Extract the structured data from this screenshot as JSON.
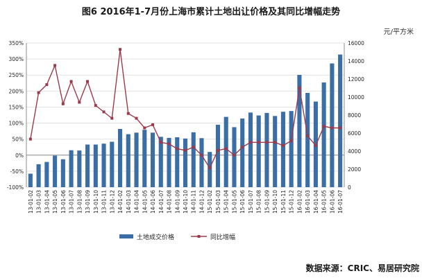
{
  "title": "图6  2016年1-7月份上海市累计土地出让价格及其同比增幅走势",
  "unit_right": "元/平方米",
  "source": "数据来源：CRIC、易居研究院",
  "colors": {
    "bar": "#3b6ea5",
    "line": "#9b3a4c",
    "grid": "#e3e3e3",
    "axis": "#8c8c8c"
  },
  "chart_data": {
    "type": "bar",
    "categories": [
      "13-01-02",
      "13-01-03",
      "13-01-04",
      "13-01-05",
      "13-01-06",
      "13-01-07",
      "13-01-08",
      "13-01-09",
      "13-01-10",
      "13-01-11",
      "13-01-12",
      "14-01-02",
      "14-01-03",
      "14-01-04",
      "14-01-05",
      "14-01-06",
      "14-01-07",
      "14-01-08",
      "14-01-09",
      "14-01-10",
      "14-01-11",
      "14-01-12",
      "15-01-02",
      "15-01-03",
      "15-01-04",
      "15-01-05",
      "15-01-06",
      "15-01-07",
      "15-01-08",
      "15-01-09",
      "15-01-10",
      "15-01-11",
      "15-01-12",
      "16-01-02",
      "16-01-03",
      "16-01-04",
      "16-01-05",
      "16-01-06",
      "16-01-07"
    ],
    "series": [
      {
        "name": "土地成交价格",
        "type": "bar",
        "axis": "right",
        "values": [
          1500,
          2550,
          2800,
          3500,
          3100,
          4100,
          4070,
          4730,
          4730,
          4830,
          5040,
          6460,
          5880,
          6050,
          6370,
          6050,
          5590,
          5470,
          5540,
          5400,
          6090,
          5440,
          3910,
          6930,
          7800,
          6660,
          7620,
          8280,
          7960,
          8240,
          7900,
          8370,
          8450,
          12460,
          10460,
          9500,
          11620,
          13730,
          14720
        ]
      },
      {
        "name": "同比增幅",
        "type": "line",
        "axis": "left",
        "values": [
          50,
          195,
          220,
          280,
          160,
          230,
          165,
          230,
          155,
          135,
          115,
          330,
          130,
          115,
          85,
          95,
          40,
          35,
          20,
          15,
          25,
          0,
          -40,
          15,
          20,
          0,
          25,
          40,
          40,
          40,
          40,
          30,
          45,
          210,
          60,
          30,
          90,
          85,
          85
        ]
      }
    ],
    "left_axis": {
      "min": -100,
      "max": 350,
      "step": 50,
      "ticks": [
        "-100%",
        "-50%",
        "0%",
        "50%",
        "100%",
        "150%",
        "200%",
        "250%",
        "300%",
        "350%"
      ]
    },
    "right_axis": {
      "min": 0,
      "max": 16000,
      "step": 2000,
      "ticks": [
        "0",
        "2000",
        "4000",
        "6000",
        "8000",
        "10000",
        "12000",
        "14000",
        "16000"
      ]
    },
    "grid": true,
    "legend_position": "bottom"
  }
}
